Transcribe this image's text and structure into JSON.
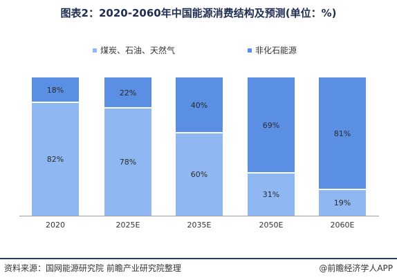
{
  "title": "图表2：2020-2060年中国能源消费结构及预测(单位：%)",
  "source": "资料来源：国网能源研究院 前瞻产业研究院整理",
  "credit": "@前瞻经济学人APP",
  "colors": {
    "fossil": "#8fb8f2",
    "nonfossil": "#5a8fe3",
    "axis": "#9e9e9e",
    "footer_line": "#1f3c7a"
  },
  "chart_data": {
    "type": "bar",
    "stacked": true,
    "percent": true,
    "categories": [
      "2020",
      "2025E",
      "2035E",
      "2050E",
      "2060E"
    ],
    "series": [
      {
        "name": "煤炭、石油、天然气",
        "values": [
          82,
          78,
          60,
          31,
          19
        ]
      },
      {
        "name": "非化石能源",
        "values": [
          18,
          22,
          40,
          69,
          81
        ]
      }
    ],
    "data_labels": [
      [
        "82%",
        "78%",
        "60%",
        "31%",
        "19%"
      ],
      [
        "18%",
        "22%",
        "40%",
        "69%",
        "81%"
      ]
    ],
    "ylim": [
      0,
      100
    ],
    "legend_position": "top",
    "grid": false
  }
}
